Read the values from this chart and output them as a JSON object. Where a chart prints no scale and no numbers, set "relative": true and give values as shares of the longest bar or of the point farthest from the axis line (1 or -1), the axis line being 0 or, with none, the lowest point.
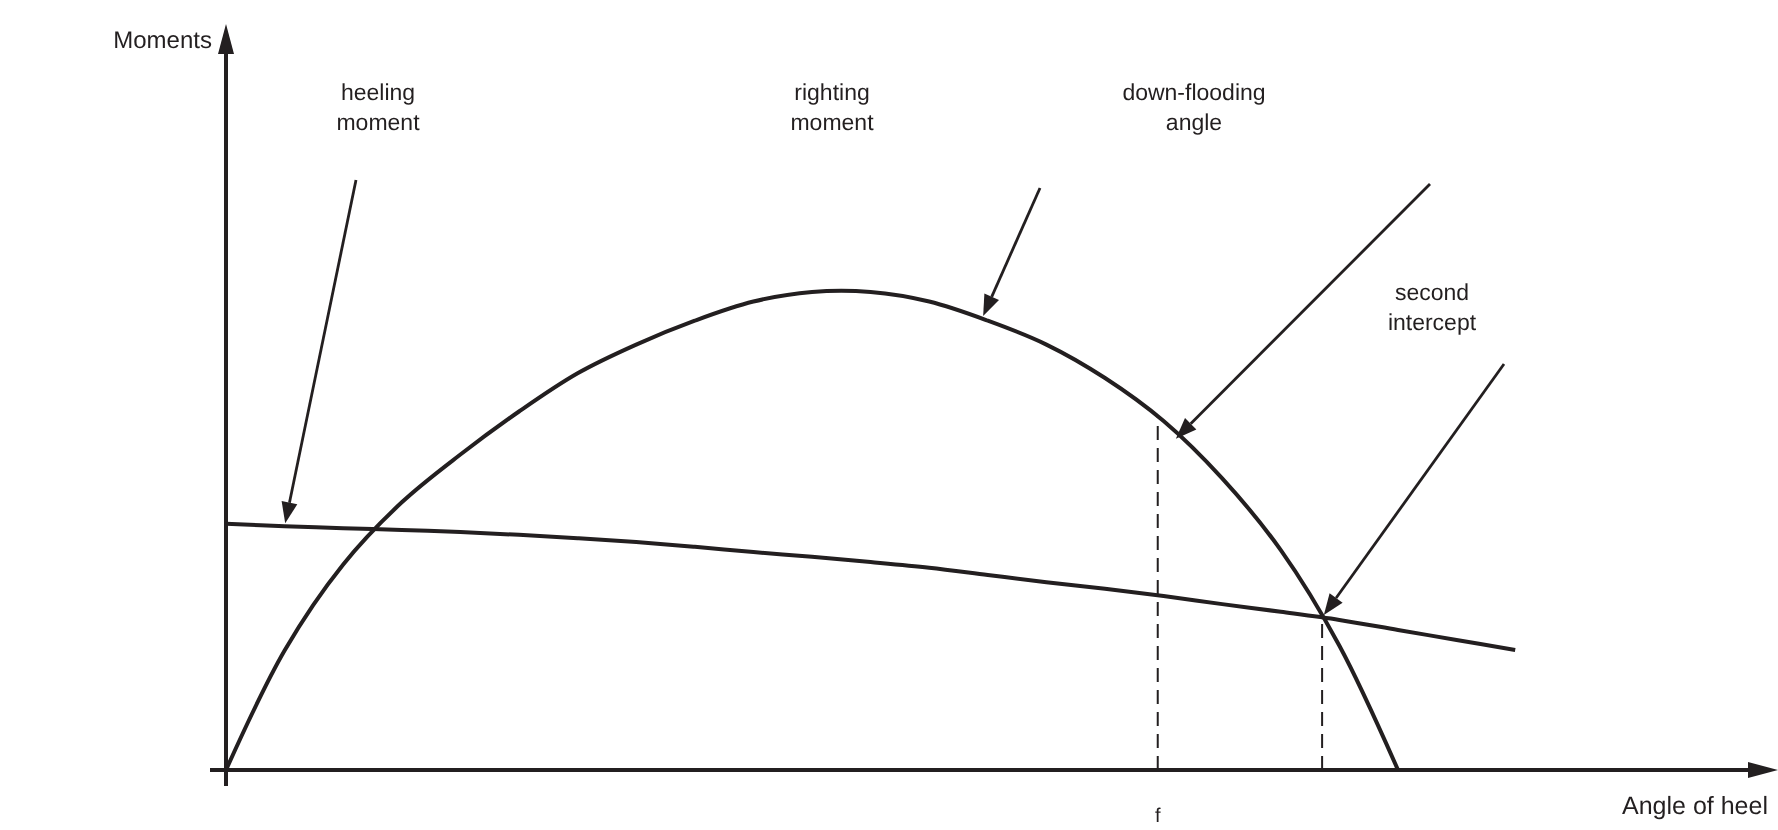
{
  "chart_data": {
    "type": "line",
    "relative": true,
    "xlabel": "Angle of heel",
    "categories": [
      null,
      null,
      null,
      null,
      null,
      null,
      null,
      null,
      null,
      null,
      null,
      null,
      null,
      null,
      null,
      null,
      null,
      null,
      null,
      null,
      null,
      null,
      null,
      null,
      null,
      null,
      null
    ],
    "series": [
      {
        "color": "#231f20",
        "values": [
          0.515,
          0.51,
          0.506,
          0.502,
          0.498,
          0.492,
          0.485,
          0.477,
          0.467,
          0.456,
          0.446,
          0.435,
          0.423,
          0.408,
          0.393,
          0.379,
          0.364,
          0.347,
          0.331,
          0.314,
          0.293,
          0.272,
          0.251,
          null,
          null,
          null,
          null
        ]
      },
      {
        "color": "#231f20",
        "values": [
          0,
          0.25,
          0.43,
          0.56,
          0.66,
          0.75,
          0.83,
          0.89,
          0.94,
          0.98,
          1,
          1,
          0.98,
          0.94,
          0.89,
          0.82,
          0.73,
          0.61,
          0.46,
          0.26,
          0,
          null,
          null,
          null,
          null,
          null,
          null
        ]
      }
    ],
    "annotations": [
      "Moments",
      "heeling moment",
      "righting moment",
      "down-flooding angle",
      "second intercept",
      "f"
    ]
  }
}
